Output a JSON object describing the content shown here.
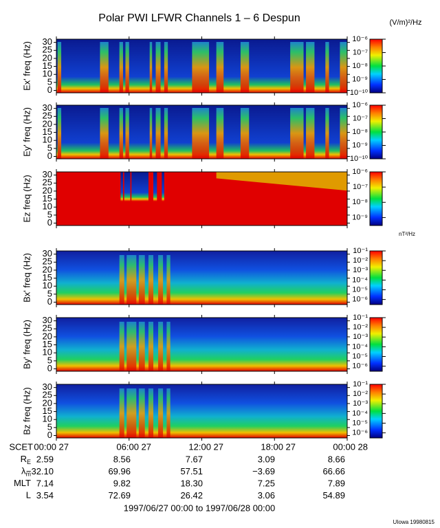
{
  "title": "Polar PWI LFWR Channels 1 – 6 Despun",
  "units_e": "(V/m)²/Hz",
  "units_b": "nT²/Hz",
  "ylim": [
    -1.5,
    32
  ],
  "yticks": [
    0,
    5,
    10,
    15,
    20,
    25,
    30
  ],
  "xlim": [
    0,
    24
  ],
  "xticks": [
    {
      "value": 0,
      "label": "00:00 27"
    },
    {
      "value": 6,
      "label": "06:00 27"
    },
    {
      "value": 12,
      "label": "12:00 27"
    },
    {
      "value": 18,
      "label": "18:00 27"
    },
    {
      "value": 24,
      "label": "00:00 28"
    }
  ],
  "panels": [
    {
      "ylabel": "Ex' freq (Hz)",
      "kind": "e",
      "clim": [
        1e-10,
        1e-06
      ],
      "cticks": [
        {
          "value": 1e-06,
          "label": "10⁻⁶"
        },
        {
          "value": 1e-07,
          "label": "10⁻⁷"
        },
        {
          "value": 1e-08,
          "label": "10⁻⁸"
        },
        {
          "value": 1e-09,
          "label": "10⁻⁹"
        },
        {
          "value": 1e-10,
          "label": "10⁻¹⁰"
        }
      ]
    },
    {
      "ylabel": "Ey' freq (Hz)",
      "kind": "e",
      "clim": [
        1e-10,
        1e-06
      ],
      "cticks": [
        {
          "value": 1e-06,
          "label": "10⁻⁶"
        },
        {
          "value": 1e-07,
          "label": "10⁻⁷"
        },
        {
          "value": 1e-08,
          "label": "10⁻⁸"
        },
        {
          "value": 1e-09,
          "label": "10⁻⁹"
        },
        {
          "value": 1e-10,
          "label": "10⁻¹⁰"
        }
      ]
    },
    {
      "ylabel": "Ez freq (Hz)",
      "kind": "z",
      "clim": [
        3e-10,
        1e-06
      ],
      "cticks": [
        {
          "value": 1e-06,
          "label": "10⁻⁶"
        },
        {
          "value": 1e-07,
          "label": "10⁻⁷"
        },
        {
          "value": 1e-08,
          "label": "10⁻⁸"
        },
        {
          "value": 1e-09,
          "label": "10⁻⁹"
        }
      ]
    },
    {
      "ylabel": "Bx' freq (Hz)",
      "kind": "b",
      "clim": [
        3e-07,
        0.1
      ],
      "cticks": [
        {
          "value": 0.1,
          "label": "10⁻¹"
        },
        {
          "value": 0.01,
          "label": "10⁻²"
        },
        {
          "value": 0.001,
          "label": "10⁻³"
        },
        {
          "value": 0.0001,
          "label": "10⁻⁴"
        },
        {
          "value": 1e-05,
          "label": "10⁻⁵"
        },
        {
          "value": 1e-06,
          "label": "10⁻⁶"
        }
      ]
    },
    {
      "ylabel": "By' freq (Hz)",
      "kind": "b",
      "clim": [
        3e-07,
        0.1
      ],
      "cticks": [
        {
          "value": 0.1,
          "label": "10⁻¹"
        },
        {
          "value": 0.01,
          "label": "10⁻²"
        },
        {
          "value": 0.001,
          "label": "10⁻³"
        },
        {
          "value": 0.0001,
          "label": "10⁻⁴"
        },
        {
          "value": 1e-05,
          "label": "10⁻⁵"
        },
        {
          "value": 1e-06,
          "label": "10⁻⁶"
        }
      ]
    },
    {
      "ylabel": "Bz freq (Hz)",
      "kind": "b",
      "clim": [
        3e-07,
        0.1
      ],
      "cticks": [
        {
          "value": 0.1,
          "label": "10⁻¹"
        },
        {
          "value": 0.01,
          "label": "10⁻²"
        },
        {
          "value": 0.001,
          "label": "10⁻³"
        },
        {
          "value": 0.0001,
          "label": "10⁻⁴"
        },
        {
          "value": 1e-05,
          "label": "10⁻⁵"
        },
        {
          "value": 1e-06,
          "label": "10⁻⁶"
        }
      ]
    }
  ],
  "time_label": "SCET",
  "ephemeris": [
    {
      "label": "R",
      "sub": "E",
      "values": [
        "2.59",
        "8.56",
        "7.67",
        "3.09",
        "8.66"
      ]
    },
    {
      "label": "λ",
      "sub": "m",
      "values": [
        "−32.10",
        "69.96",
        "57.51",
        "−3.69",
        "66.66"
      ]
    },
    {
      "label": "MLT",
      "values": [
        "7.14",
        "9.82",
        "18.30",
        "7.25",
        "7.89"
      ]
    },
    {
      "label": "L",
      "values": [
        "3.54",
        "72.69",
        "26.42",
        "3.06",
        "54.89"
      ]
    }
  ],
  "date_range": "1997/06/27 00:00 to 1997/06/28 00:00",
  "footer": "UIowa 19980815"
}
